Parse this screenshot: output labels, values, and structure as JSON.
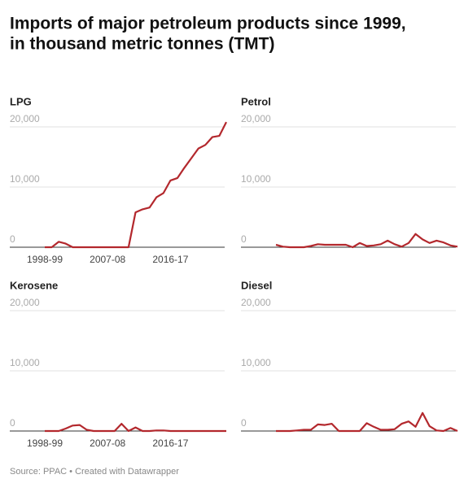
{
  "title_lines": [
    "Imports of major petroleum products since 1999,",
    "in thousand metric tonnes (TMT)"
  ],
  "source": "Source: PPAC • Created with Datawrapper",
  "chart_data": [
    {
      "type": "line",
      "title": "LPG",
      "color": "#b3282d",
      "categories": [
        "1998-99",
        "1999-00",
        "2000-01",
        "2001-02",
        "2002-03",
        "2003-04",
        "2004-05",
        "2005-06",
        "2006-07",
        "2007-08",
        "2008-09",
        "2009-10",
        "2010-11",
        "2011-12",
        "2012-13",
        "2013-14",
        "2014-15",
        "2015-16",
        "2016-17",
        "2017-18",
        "2018-19",
        "2019-20",
        "2020-21",
        "2021-22",
        "2022-23",
        "2023-24",
        "2024-25"
      ],
      "values": [
        0,
        0,
        900,
        600,
        0,
        0,
        0,
        0,
        0,
        0,
        0,
        0,
        0,
        5800,
        6300,
        6600,
        8300,
        9000,
        11100,
        11500,
        13200,
        14800,
        16400,
        17000,
        18300,
        18500,
        20800
      ],
      "ylim": [
        0,
        20000
      ],
      "yticks": [
        0,
        {
          "value": 10000,
          "label": "10,000"
        },
        {
          "value": 20000,
          "label": "20,000"
        }
      ],
      "xticks": [
        "1998-99",
        "2007-08",
        "2016-17"
      ],
      "grid": true
    },
    {
      "type": "line",
      "title": "Petrol",
      "color": "#b3282d",
      "categories": [
        "1998-99",
        "1999-00",
        "2000-01",
        "2001-02",
        "2002-03",
        "2003-04",
        "2004-05",
        "2005-06",
        "2006-07",
        "2007-08",
        "2008-09",
        "2009-10",
        "2010-11",
        "2011-12",
        "2012-13",
        "2013-14",
        "2014-15",
        "2015-16",
        "2016-17",
        "2017-18",
        "2018-19",
        "2019-20",
        "2020-21",
        "2021-22",
        "2022-23",
        "2023-24",
        "2024-25"
      ],
      "values": [
        400,
        100,
        0,
        0,
        0,
        200,
        500,
        400,
        400,
        400,
        400,
        0,
        700,
        200,
        300,
        500,
        1100,
        500,
        100,
        700,
        2200,
        1300,
        700,
        1100,
        800,
        300,
        100
      ],
      "ylim": [
        0,
        20000
      ],
      "yticks": [
        0,
        {
          "value": 10000,
          "label": "10,000"
        },
        {
          "value": 20000,
          "label": "20,000"
        }
      ],
      "grid": true
    },
    {
      "type": "line",
      "title": "Kerosene",
      "color": "#b3282d",
      "categories": [
        "1998-99",
        "1999-00",
        "2000-01",
        "2001-02",
        "2002-03",
        "2003-04",
        "2004-05",
        "2005-06",
        "2006-07",
        "2007-08",
        "2008-09",
        "2009-10",
        "2010-11",
        "2011-12",
        "2012-13",
        "2013-14",
        "2014-15",
        "2015-16",
        "2016-17",
        "2017-18",
        "2018-19",
        "2019-20",
        "2020-21",
        "2021-22",
        "2022-23",
        "2023-24",
        "2024-25"
      ],
      "values": [
        0,
        0,
        0,
        400,
        900,
        1000,
        200,
        0,
        0,
        0,
        0,
        1200,
        0,
        600,
        0,
        0,
        100,
        100,
        0,
        0,
        0,
        0,
        0,
        0,
        0,
        0,
        0
      ],
      "ylim": [
        0,
        20000
      ],
      "yticks": [
        0,
        {
          "value": 10000,
          "label": "10,000"
        },
        {
          "value": 20000,
          "label": "20,000"
        }
      ],
      "xticks": [
        "1998-99",
        "2007-08",
        "2016-17"
      ],
      "grid": true
    },
    {
      "type": "line",
      "title": "Diesel",
      "color": "#b3282d",
      "categories": [
        "1998-99",
        "1999-00",
        "2000-01",
        "2001-02",
        "2002-03",
        "2003-04",
        "2004-05",
        "2005-06",
        "2006-07",
        "2007-08",
        "2008-09",
        "2009-10",
        "2010-11",
        "2011-12",
        "2012-13",
        "2013-14",
        "2014-15",
        "2015-16",
        "2016-17",
        "2017-18",
        "2018-19",
        "2019-20",
        "2020-21",
        "2021-22",
        "2022-23",
        "2023-24",
        "2024-25"
      ],
      "values": [
        0,
        0,
        0,
        100,
        200,
        200,
        1100,
        1000,
        1200,
        0,
        0,
        0,
        0,
        1300,
        700,
        200,
        200,
        300,
        1200,
        1600,
        700,
        3000,
        800,
        100,
        0,
        500,
        0
      ],
      "ylim": [
        0,
        20000
      ],
      "yticks": [
        0,
        {
          "value": 10000,
          "label": "10,000"
        },
        {
          "value": 20000,
          "label": "20,000"
        }
      ],
      "grid": true
    }
  ]
}
